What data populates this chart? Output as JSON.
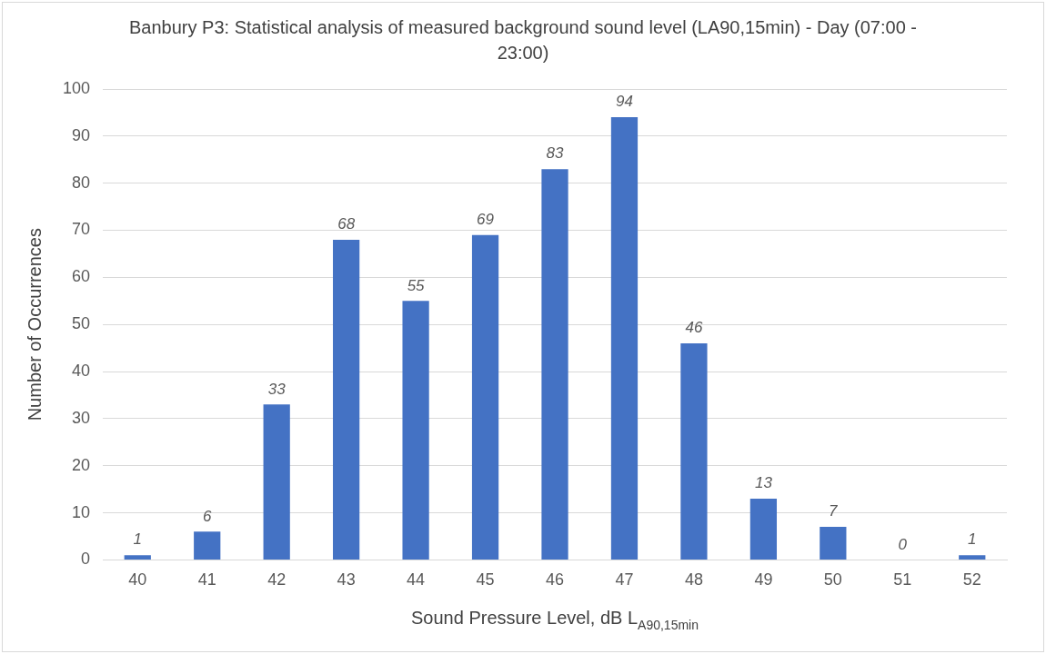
{
  "chart_data": {
    "type": "bar",
    "title": "Banbury P3: Statistical analysis of measured background sound level (LA90,15min) - Day (07:00 - 23:00)",
    "xlabel": "Sound Pressure Level, dB L$_{A90,15min}$",
    "ylabel": "Number of Occurrences",
    "categories": [
      "40",
      "41",
      "42",
      "43",
      "44",
      "45",
      "46",
      "47",
      "48",
      "49",
      "50",
      "51",
      "52"
    ],
    "values": [
      1,
      6,
      33,
      68,
      55,
      69,
      83,
      94,
      46,
      13,
      7,
      0,
      1
    ],
    "color": "#4472c4",
    "ylim": [
      0,
      100
    ],
    "yticks": [
      0,
      10,
      20,
      30,
      40,
      50,
      60,
      70,
      80,
      90,
      100
    ],
    "grid": "y",
    "data_labels": true
  }
}
